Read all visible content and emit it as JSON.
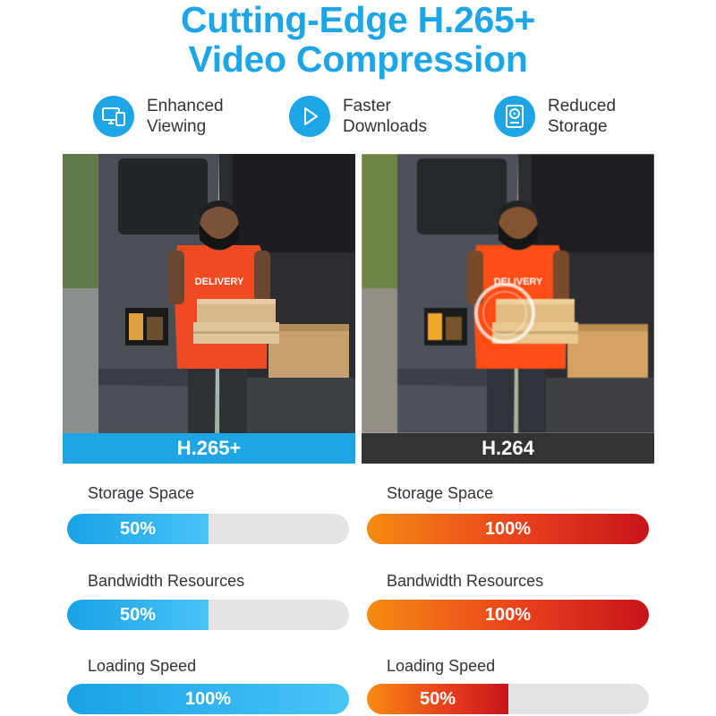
{
  "header": {
    "title_line1": "Cutting-Edge H.265+",
    "title_line2": "Video Compression"
  },
  "features": [
    {
      "icon": "monitor-phone-icon",
      "line1": "Enhanced",
      "line2": "Viewing"
    },
    {
      "icon": "play-icon",
      "line1": "Faster",
      "line2": "Downloads"
    },
    {
      "icon": "hard-drive-icon",
      "line1": "Reduced",
      "line2": "Storage"
    }
  ],
  "comparison": {
    "left": {
      "caption": "H.265+",
      "shirt_text": "DELIVERY"
    },
    "right": {
      "caption": "H.264",
      "shirt_text": "DELIVERY"
    }
  },
  "metrics": {
    "left": [
      {
        "label": "Storage Space",
        "value": "50%",
        "fraction": 0.5
      },
      {
        "label": "Bandwidth Resources",
        "value": "50%",
        "fraction": 0.5
      },
      {
        "label": "Loading Speed",
        "value": "100%",
        "fraction": 1.0
      }
    ],
    "right": [
      {
        "label": "Storage Space",
        "value": "100%",
        "fraction": 1.0
      },
      {
        "label": "Bandwidth Resources",
        "value": "100%",
        "fraction": 1.0
      },
      {
        "label": "Loading Speed",
        "value": "50%",
        "fraction": 0.5
      }
    ]
  },
  "colors": {
    "accent_blue": "#1ea5e6",
    "h264_dark": "#333333",
    "bar_orange": "#f68b12",
    "bar_red": "#c8141c",
    "bar_track": "#e3e3e3"
  }
}
